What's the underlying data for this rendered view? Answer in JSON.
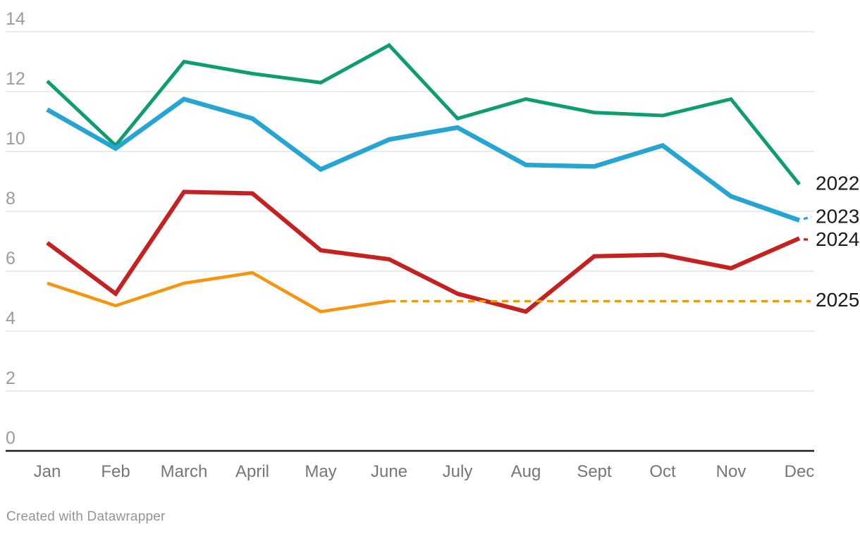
{
  "chart_data": {
    "type": "line",
    "title": "",
    "xlabel": "",
    "ylabel": "",
    "categories": [
      "Jan",
      "Feb",
      "March",
      "April",
      "May",
      "June",
      "July",
      "Aug",
      "Sept",
      "Oct",
      "Nov",
      "Dec"
    ],
    "series": [
      {
        "name": "2022",
        "color": "#0D9D6F",
        "style": "solid",
        "values": [
          12.35,
          10.2,
          13.0,
          12.6,
          12.3,
          13.55,
          11.1,
          11.75,
          11.3,
          11.2,
          11.75,
          8.9
        ]
      },
      {
        "name": "2023",
        "color": "#27A5D2",
        "style": "solid",
        "leader_dash": true,
        "values": [
          11.4,
          10.1,
          11.75,
          11.1,
          9.4,
          10.4,
          10.8,
          9.55,
          9.5,
          10.2,
          8.5,
          7.7
        ]
      },
      {
        "name": "2024",
        "color": "#C42120",
        "style": "solid",
        "leader_dash": true,
        "values": [
          6.95,
          5.25,
          8.65,
          8.6,
          6.7,
          6.4,
          5.25,
          4.65,
          6.5,
          6.55,
          6.1,
          7.1
        ]
      },
      {
        "name": "2025",
        "color": "#F8940D",
        "style": "solid-then-dashed",
        "values": [
          5.6,
          4.85,
          5.6,
          5.95,
          4.65,
          5.0,
          null,
          null,
          null,
          null,
          null,
          null
        ],
        "projection": {
          "from_category": "June",
          "to_category": "Dec",
          "value": 5.0,
          "style": "dashed"
        }
      }
    ],
    "ylim": [
      0,
      14
    ],
    "ytick_step": 2,
    "yticks": [
      0,
      2,
      4,
      6,
      8,
      10,
      12,
      14
    ],
    "grid": "horizontal",
    "legend_position": "right-end-labels",
    "axis_colors": {
      "gridline": "#E3E3E3",
      "baseline": "#1A1A1A",
      "ytick_text": "#9B9B9B",
      "xtick_text": "#767676",
      "series_label_text": "#1A1A1A"
    }
  },
  "footer": {
    "credit": "Created with Datawrapper"
  }
}
